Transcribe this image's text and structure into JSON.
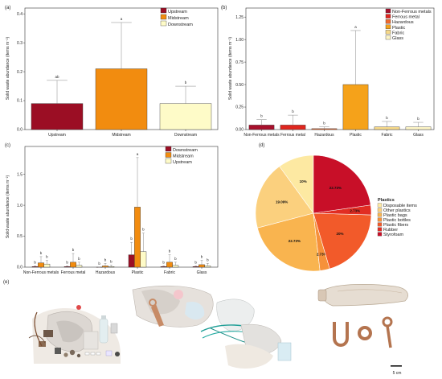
{
  "chart_data": [
    {
      "type": "bar",
      "panel_label": "(a)",
      "title": "",
      "xlabel": "",
      "ylabel": "Solid waste abundance (items m⁻²)",
      "ylim": [
        0,
        0.42
      ],
      "yticks": [
        "0.0",
        "0.1",
        "0.2",
        "0.3",
        "0.4"
      ],
      "legend_position": "top-right",
      "categories": [
        "Upstream",
        "Midstream",
        "Downstream"
      ],
      "values": [
        0.09,
        0.21,
        0.09
      ],
      "errors": [
        0.08,
        0.16,
        0.06
      ],
      "letters": [
        "ab",
        "a",
        "b"
      ],
      "colors": [
        "#9b0e24",
        "#f28c0f",
        "#fefbc8"
      ],
      "legend": [
        "Upstream",
        "Midstream",
        "Downstream"
      ]
    },
    {
      "type": "bar",
      "panel_label": "(b)",
      "title": "",
      "xlabel": "",
      "ylabel": "Solid waste abundance (items m⁻²)",
      "ylim": [
        0,
        1.35
      ],
      "yticks": [
        "0.00",
        "0.25",
        "0.50",
        "0.75",
        "1.00",
        "1.25"
      ],
      "legend_position": "top-right",
      "categories": [
        "Non-Ferrous metals",
        "Ferrous metal",
        "Hazardous",
        "Plastic",
        "Fabric",
        "Glass"
      ],
      "values": [
        0.05,
        0.05,
        0.01,
        0.5,
        0.03,
        0.03
      ],
      "errors": [
        0.06,
        0.11,
        0.02,
        0.6,
        0.06,
        0.05
      ],
      "letters": [
        "b",
        "b",
        "b",
        "a",
        "b",
        "b"
      ],
      "colors": [
        "#a8102c",
        "#e0261e",
        "#f06a2e",
        "#f5a21a",
        "#f7d98a",
        "#fdf5c6"
      ],
      "legend": [
        "Non-Ferrous metals",
        "Ferrous metal",
        "Hazardous",
        "Plastic",
        "Fabric",
        "Glass"
      ]
    },
    {
      "type": "bar",
      "panel_label": "(c)",
      "title": "",
      "xlabel": "",
      "ylabel": "Solid waste abundance (items m⁻²)",
      "ylim": [
        0,
        1.95
      ],
      "yticks": [
        "0.0",
        "0.5",
        "1.0",
        "1.5"
      ],
      "legend_position": "top-right",
      "categories": [
        "Non-Ferrous metals",
        "Ferrous metal",
        "Hazardous",
        "Plastic",
        "Fabric",
        "Glass"
      ],
      "series": [
        {
          "name": "Downstream",
          "color": "#9b0e24",
          "values": [
            0.01,
            0.01,
            0.0,
            0.2,
            0.01,
            0.01
          ],
          "errors": [
            0.01,
            0.01,
            0.0,
            0.2,
            0.01,
            0.01
          ],
          "letters": [
            "b",
            "b",
            "b",
            "b",
            "b",
            "b"
          ]
        },
        {
          "name": "Midstream",
          "color": "#f28c0f",
          "values": [
            0.07,
            0.08,
            0.02,
            0.97,
            0.08,
            0.04
          ],
          "errors": [
            0.1,
            0.14,
            0.04,
            0.8,
            0.12,
            0.07
          ],
          "letters": [
            "b",
            "b",
            "b",
            "a",
            "b",
            "b"
          ]
        },
        {
          "name": "Upstream",
          "color": "#fefbc8",
          "values": [
            0.05,
            0.03,
            0.01,
            0.25,
            0.03,
            0.02
          ],
          "errors": [
            0.06,
            0.05,
            0.02,
            0.3,
            0.05,
            0.04
          ],
          "letters": [
            "b",
            "b",
            "b",
            "b",
            "b",
            "b"
          ]
        }
      ]
    },
    {
      "type": "pie",
      "panel_label": "(d)",
      "title": "",
      "legend_title": "Plastics",
      "legend_position": "right",
      "slices": [
        {
          "name": "Disposable items",
          "value": 10,
          "label": "10%",
          "color": "#fde9a2"
        },
        {
          "name": "Other plastics",
          "value": 19.09,
          "label": "19.09%",
          "color": "#fbd07e"
        },
        {
          "name": "Plastic bags",
          "value": 22.73,
          "label": "22.73%",
          "color": "#f9b44f"
        },
        {
          "name": "Plastic bottles",
          "value": 2.73,
          "label": "2.73%",
          "color": "#f6913a"
        },
        {
          "name": "Plastic fibers",
          "value": 20,
          "label": "20%",
          "color": "#f25a2a"
        },
        {
          "name": "Rubber",
          "value": 2.73,
          "label": "2.73%",
          "color": "#e12d23"
        },
        {
          "name": "Styrofoam",
          "value": 22.73,
          "label": "22.73%",
          "color": "#c80f28"
        }
      ]
    }
  ],
  "photos": {
    "panel_label": "(e)",
    "scale_label": "5 cm"
  }
}
